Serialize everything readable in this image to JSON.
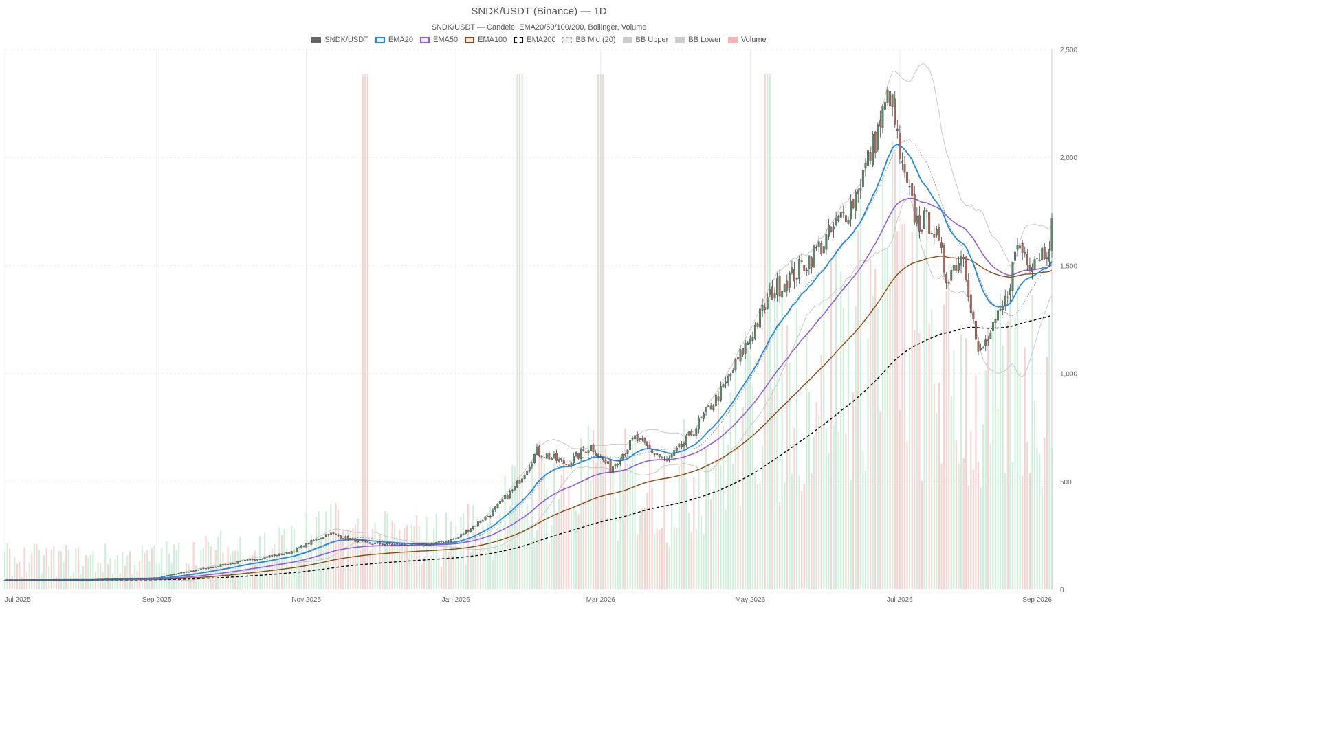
{
  "chart_data": {
    "type": "candlestick",
    "title": "SNDK/USDT (Binance) — 1D",
    "subtitle": "SNDK/USDT — Candele, EMA20/50/100/200, Bollinger, Volume",
    "legend": [
      {
        "label": "SNDK/USDT",
        "color": "#666666",
        "style": "fill"
      },
      {
        "label": "EMA20",
        "color": "#1e88e5",
        "style": "line"
      },
      {
        "label": "EMA50",
        "color": "#8e5be8",
        "style": "line"
      },
      {
        "label": "EMA100",
        "color": "#8b4513",
        "style": "line"
      },
      {
        "label": "EMA200",
        "color": "#000000",
        "style": "dashed"
      },
      {
        "label": "BB Mid (20)",
        "color": "#aaaaaa",
        "style": "dotted"
      },
      {
        "label": "BB Upper",
        "color": "#cccccc",
        "style": "fill"
      },
      {
        "label": "BB Lower",
        "color": "#cccccc",
        "style": "fill"
      },
      {
        "label": "Volume",
        "color": "#f4b6b0",
        "style": "fill"
      }
    ],
    "x_range": [
      "2025-07-01",
      "2026-09-01"
    ],
    "x_ticks": [
      {
        "date": "2025-07-01",
        "label": "Jul 2025"
      },
      {
        "date": "2025-09-01",
        "label": "Sep 2025"
      },
      {
        "date": "2025-11-01",
        "label": "Nov 2025"
      },
      {
        "date": "2026-01-01",
        "label": "Jan 2026"
      },
      {
        "date": "2026-03-01",
        "label": "Mar 2026"
      },
      {
        "date": "2026-05-01",
        "label": "May 2026"
      },
      {
        "date": "2026-07-01",
        "label": "Jul 2026"
      },
      {
        "date": "2026-09-01",
        "label": "Sep 2026"
      }
    ],
    "y_range": [
      0,
      2500
    ],
    "y_ticks": [
      {
        "value": 0,
        "label": "0"
      },
      {
        "value": 500,
        "label": "500"
      },
      {
        "value": 1000,
        "label": "1,000"
      },
      {
        "value": 1500,
        "label": "1,500"
      },
      {
        "value": 2000,
        "label": "2,000"
      },
      {
        "value": 2500,
        "label": "2,500"
      }
    ],
    "grid": true,
    "up_color": "#5b8c6a",
    "down_color": "#b5675a",
    "volume_up_color": "#bfe8cd",
    "volume_down_color": "#f4c3bd",
    "close_anchors": [
      [
        "2025-07-01",
        45
      ],
      [
        "2025-08-01",
        45
      ],
      [
        "2025-09-01",
        55
      ],
      [
        "2025-10-01",
        120
      ],
      [
        "2025-10-25",
        170
      ],
      [
        "2025-11-10",
        260
      ],
      [
        "2025-11-25",
        215
      ],
      [
        "2025-12-05",
        210
      ],
      [
        "2025-12-20",
        205
      ],
      [
        "2026-01-01",
        235
      ],
      [
        "2026-01-15",
        350
      ],
      [
        "2026-01-25",
        470
      ],
      [
        "2026-02-03",
        640
      ],
      [
        "2026-02-15",
        580
      ],
      [
        "2026-02-25",
        665
      ],
      [
        "2026-03-05",
        560
      ],
      [
        "2026-03-15",
        700
      ],
      [
        "2026-03-28",
        590
      ],
      [
        "2026-04-05",
        690
      ],
      [
        "2026-04-20",
        930
      ],
      [
        "2026-05-01",
        1170
      ],
      [
        "2026-05-10",
        1380
      ],
      [
        "2026-05-20",
        1470
      ],
      [
        "2026-06-01",
        1620
      ],
      [
        "2026-06-12",
        1800
      ],
      [
        "2026-06-20",
        2050
      ],
      [
        "2026-06-27",
        2300
      ],
      [
        "2026-07-02",
        1930
      ],
      [
        "2026-07-08",
        1700
      ],
      [
        "2026-07-14",
        1700
      ],
      [
        "2026-07-20",
        1450
      ],
      [
        "2026-07-27",
        1560
      ],
      [
        "2026-08-02",
        1080
      ],
      [
        "2026-08-08",
        1200
      ],
      [
        "2026-08-13",
        1330
      ],
      [
        "2026-08-18",
        1600
      ],
      [
        "2026-08-23",
        1530
      ],
      [
        "2026-08-30",
        1580
      ],
      [
        "2026-09-01",
        1680
      ]
    ],
    "ema_final": {
      "EMA20": 1525,
      "EMA50": 1520,
      "EMA100": 1410,
      "EMA200": 1110
    },
    "volume_peak_dates": [
      "2025-11-25",
      "2026-01-27",
      "2026-03-01",
      "2026-05-08"
    ]
  }
}
